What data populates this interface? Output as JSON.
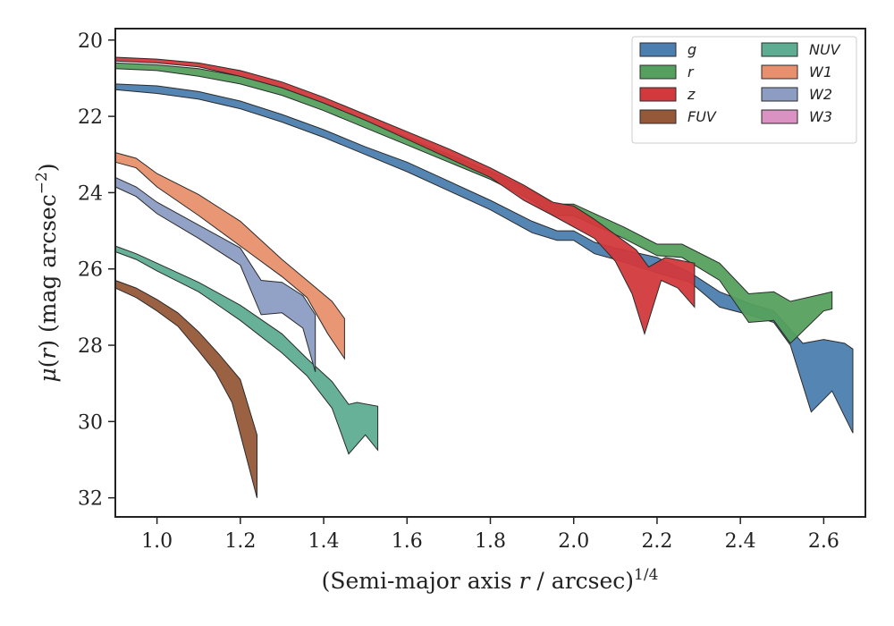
{
  "chart_data": {
    "type": "area",
    "xlabel": "(Semi-major axis r / arcsec)^1/4",
    "ylabel": "μ(r) (mag arcsec^−2)",
    "xlim": [
      0.9,
      2.7
    ],
    "ylim": [
      32.5,
      19.7
    ],
    "y_inverted": true,
    "x_ticks": [
      "1.0",
      "1.2",
      "1.4",
      "1.6",
      "1.8",
      "2.0",
      "2.2",
      "2.4",
      "2.6"
    ],
    "y_ticks": [
      "20",
      "22",
      "24",
      "26",
      "28",
      "30",
      "32"
    ],
    "legend_position": "top-right",
    "series": [
      {
        "name": "g",
        "color": "#4c7eaf",
        "upper": [
          [
            0.9,
            21.15
          ],
          [
            1.0,
            21.2
          ],
          [
            1.1,
            21.35
          ],
          [
            1.2,
            21.6
          ],
          [
            1.3,
            21.95
          ],
          [
            1.4,
            22.35
          ],
          [
            1.5,
            22.8
          ],
          [
            1.6,
            23.2
          ],
          [
            1.7,
            23.7
          ],
          [
            1.8,
            24.2
          ],
          [
            1.9,
            24.75
          ],
          [
            1.96,
            25.0
          ],
          [
            2.0,
            25.0
          ],
          [
            2.05,
            25.3
          ],
          [
            2.1,
            25.45
          ],
          [
            2.2,
            25.7
          ],
          [
            2.28,
            26.1
          ],
          [
            2.35,
            26.6
          ],
          [
            2.42,
            26.9
          ],
          [
            2.48,
            27.1
          ],
          [
            2.55,
            27.95
          ],
          [
            2.6,
            27.85
          ],
          [
            2.65,
            27.95
          ],
          [
            2.67,
            28.1
          ]
        ],
        "lower": [
          [
            0.9,
            21.3
          ],
          [
            1.0,
            21.4
          ],
          [
            1.1,
            21.55
          ],
          [
            1.2,
            21.8
          ],
          [
            1.3,
            22.15
          ],
          [
            1.4,
            22.55
          ],
          [
            1.5,
            23.0
          ],
          [
            1.6,
            23.45
          ],
          [
            1.7,
            23.95
          ],
          [
            1.8,
            24.45
          ],
          [
            1.9,
            25.05
          ],
          [
            1.96,
            25.25
          ],
          [
            2.0,
            25.25
          ],
          [
            2.05,
            25.6
          ],
          [
            2.1,
            25.75
          ],
          [
            2.2,
            26.1
          ],
          [
            2.28,
            26.35
          ],
          [
            2.35,
            27.0
          ],
          [
            2.42,
            27.2
          ],
          [
            2.48,
            27.4
          ],
          [
            2.52,
            28.0
          ],
          [
            2.57,
            29.75
          ],
          [
            2.62,
            29.2
          ],
          [
            2.67,
            30.3
          ]
        ]
      },
      {
        "name": "r",
        "color": "#55a05e",
        "upper": [
          [
            0.9,
            20.6
          ],
          [
            1.0,
            20.65
          ],
          [
            1.1,
            20.75
          ],
          [
            1.2,
            20.95
          ],
          [
            1.3,
            21.25
          ],
          [
            1.4,
            21.65
          ],
          [
            1.5,
            22.1
          ],
          [
            1.6,
            22.55
          ],
          [
            1.7,
            23.0
          ],
          [
            1.8,
            23.45
          ],
          [
            1.9,
            23.95
          ],
          [
            1.95,
            24.3
          ],
          [
            2.0,
            24.3
          ],
          [
            2.05,
            24.55
          ],
          [
            2.12,
            24.9
          ],
          [
            2.2,
            25.35
          ],
          [
            2.26,
            25.35
          ],
          [
            2.35,
            25.85
          ],
          [
            2.42,
            26.65
          ],
          [
            2.48,
            26.6
          ],
          [
            2.52,
            26.85
          ],
          [
            2.6,
            26.65
          ],
          [
            2.62,
            26.6
          ]
        ],
        "lower": [
          [
            0.9,
            20.75
          ],
          [
            1.0,
            20.8
          ],
          [
            1.1,
            20.95
          ],
          [
            1.2,
            21.15
          ],
          [
            1.3,
            21.45
          ],
          [
            1.4,
            21.85
          ],
          [
            1.5,
            22.3
          ],
          [
            1.6,
            22.75
          ],
          [
            1.7,
            23.2
          ],
          [
            1.8,
            23.65
          ],
          [
            1.9,
            24.2
          ],
          [
            1.95,
            24.6
          ],
          [
            2.0,
            24.6
          ],
          [
            2.05,
            24.85
          ],
          [
            2.12,
            25.2
          ],
          [
            2.2,
            25.65
          ],
          [
            2.26,
            25.7
          ],
          [
            2.35,
            26.3
          ],
          [
            2.42,
            27.4
          ],
          [
            2.48,
            27.35
          ],
          [
            2.52,
            27.95
          ],
          [
            2.6,
            27.1
          ],
          [
            2.62,
            27.05
          ]
        ]
      },
      {
        "name": "z",
        "color": "#d2393c",
        "upper": [
          [
            0.9,
            20.45
          ],
          [
            1.0,
            20.5
          ],
          [
            1.1,
            20.6
          ],
          [
            1.2,
            20.8
          ],
          [
            1.3,
            21.1
          ],
          [
            1.4,
            21.5
          ],
          [
            1.5,
            21.95
          ],
          [
            1.6,
            22.4
          ],
          [
            1.7,
            22.85
          ],
          [
            1.8,
            23.35
          ],
          [
            1.88,
            23.8
          ],
          [
            1.95,
            24.25
          ],
          [
            2.0,
            24.35
          ],
          [
            2.05,
            24.7
          ],
          [
            2.1,
            25.1
          ],
          [
            2.15,
            25.5
          ],
          [
            2.18,
            25.95
          ],
          [
            2.22,
            25.7
          ],
          [
            2.29,
            25.85
          ]
        ],
        "lower": [
          [
            0.9,
            20.55
          ],
          [
            1.0,
            20.6
          ],
          [
            1.1,
            20.7
          ],
          [
            1.2,
            20.95
          ],
          [
            1.3,
            21.25
          ],
          [
            1.4,
            21.65
          ],
          [
            1.5,
            22.1
          ],
          [
            1.6,
            22.6
          ],
          [
            1.7,
            23.1
          ],
          [
            1.8,
            23.6
          ],
          [
            1.88,
            24.2
          ],
          [
            1.95,
            24.6
          ],
          [
            2.0,
            24.9
          ],
          [
            2.05,
            25.2
          ],
          [
            2.1,
            25.8
          ],
          [
            2.14,
            26.65
          ],
          [
            2.17,
            27.7
          ],
          [
            2.21,
            26.3
          ],
          [
            2.25,
            26.5
          ],
          [
            2.29,
            27.0
          ]
        ]
      },
      {
        "name": "FUV",
        "color": "#955838",
        "upper": [
          [
            0.9,
            26.3
          ],
          [
            0.95,
            26.5
          ],
          [
            1.0,
            26.8
          ],
          [
            1.05,
            27.15
          ],
          [
            1.1,
            27.65
          ],
          [
            1.15,
            28.25
          ],
          [
            1.2,
            28.9
          ],
          [
            1.24,
            30.35
          ]
        ],
        "lower": [
          [
            0.9,
            26.5
          ],
          [
            0.95,
            26.75
          ],
          [
            1.0,
            27.1
          ],
          [
            1.05,
            27.5
          ],
          [
            1.1,
            28.15
          ],
          [
            1.14,
            28.7
          ],
          [
            1.18,
            29.5
          ],
          [
            1.24,
            32.0
          ]
        ]
      },
      {
        "name": "NUV",
        "color": "#5ead92",
        "upper": [
          [
            0.9,
            25.4
          ],
          [
            0.95,
            25.6
          ],
          [
            1.0,
            25.85
          ],
          [
            1.1,
            26.35
          ],
          [
            1.2,
            26.95
          ],
          [
            1.3,
            27.7
          ],
          [
            1.36,
            28.35
          ],
          [
            1.42,
            28.95
          ],
          [
            1.46,
            29.55
          ],
          [
            1.48,
            29.5
          ],
          [
            1.53,
            29.6
          ]
        ],
        "lower": [
          [
            0.9,
            25.55
          ],
          [
            0.95,
            25.75
          ],
          [
            1.0,
            26.05
          ],
          [
            1.1,
            26.6
          ],
          [
            1.2,
            27.35
          ],
          [
            1.3,
            28.2
          ],
          [
            1.36,
            28.8
          ],
          [
            1.42,
            29.65
          ],
          [
            1.46,
            30.85
          ],
          [
            1.5,
            30.35
          ],
          [
            1.53,
            30.75
          ]
        ]
      },
      {
        "name": "W1",
        "color": "#e8906d",
        "upper": [
          [
            0.9,
            22.95
          ],
          [
            0.95,
            23.1
          ],
          [
            1.0,
            23.5
          ],
          [
            1.1,
            24.05
          ],
          [
            1.2,
            24.75
          ],
          [
            1.3,
            25.75
          ],
          [
            1.36,
            26.3
          ],
          [
            1.42,
            26.85
          ],
          [
            1.45,
            27.3
          ]
        ],
        "lower": [
          [
            0.9,
            23.2
          ],
          [
            0.95,
            23.35
          ],
          [
            1.0,
            23.85
          ],
          [
            1.1,
            24.6
          ],
          [
            1.2,
            25.4
          ],
          [
            1.3,
            26.2
          ],
          [
            1.36,
            26.75
          ],
          [
            1.41,
            27.7
          ],
          [
            1.45,
            28.35
          ]
        ]
      },
      {
        "name": "W2",
        "color": "#8c9cc3",
        "upper": [
          [
            0.9,
            23.6
          ],
          [
            0.95,
            23.85
          ],
          [
            1.0,
            24.25
          ],
          [
            1.1,
            24.85
          ],
          [
            1.2,
            25.45
          ],
          [
            1.25,
            26.3
          ],
          [
            1.3,
            26.35
          ],
          [
            1.35,
            26.7
          ],
          [
            1.38,
            27.2
          ]
        ],
        "lower": [
          [
            0.9,
            23.85
          ],
          [
            0.95,
            24.1
          ],
          [
            1.0,
            24.55
          ],
          [
            1.1,
            25.2
          ],
          [
            1.2,
            25.9
          ],
          [
            1.25,
            27.2
          ],
          [
            1.3,
            27.15
          ],
          [
            1.35,
            27.55
          ],
          [
            1.38,
            28.7
          ]
        ]
      },
      {
        "name": "W3",
        "color": "#d992c2",
        "upper": [],
        "lower": []
      }
    ]
  }
}
